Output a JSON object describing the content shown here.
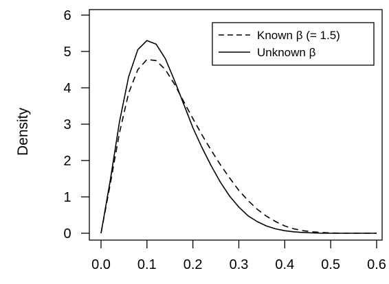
{
  "chart_data": {
    "type": "line",
    "title": "",
    "xlabel": "",
    "ylabel": "Density",
    "xlim": [
      0.0,
      0.6
    ],
    "ylim": [
      0,
      6
    ],
    "x_ticks": [
      "0.0",
      "0.1",
      "0.2",
      "0.3",
      "0.4",
      "0.5",
      "0.6"
    ],
    "y_ticks": [
      "0",
      "1",
      "2",
      "3",
      "4",
      "5",
      "6"
    ],
    "grid": false,
    "legend_position": "top-right",
    "series": [
      {
        "name": "Known β (= 1.5)",
        "style": "dashed",
        "color": "#000000",
        "x": [
          0.0,
          0.02,
          0.04,
          0.06,
          0.08,
          0.1,
          0.12,
          0.14,
          0.16,
          0.18,
          0.2,
          0.22,
          0.24,
          0.26,
          0.28,
          0.3,
          0.32,
          0.34,
          0.36,
          0.38,
          0.4,
          0.42,
          0.44,
          0.46,
          0.48,
          0.5,
          0.52,
          0.55,
          0.6
        ],
        "y": [
          0.0,
          1.35,
          2.75,
          3.85,
          4.5,
          4.78,
          4.75,
          4.5,
          4.1,
          3.62,
          3.15,
          2.7,
          2.28,
          1.88,
          1.52,
          1.18,
          0.9,
          0.66,
          0.47,
          0.32,
          0.2,
          0.12,
          0.07,
          0.04,
          0.02,
          0.01,
          0.0,
          0.0,
          0.0
        ]
      },
      {
        "name": "Unknown β",
        "style": "solid",
        "color": "#000000",
        "x": [
          0.0,
          0.02,
          0.04,
          0.06,
          0.08,
          0.1,
          0.12,
          0.14,
          0.16,
          0.18,
          0.2,
          0.22,
          0.24,
          0.26,
          0.28,
          0.3,
          0.32,
          0.34,
          0.36,
          0.38,
          0.4,
          0.42,
          0.44,
          0.46,
          0.48,
          0.5,
          0.52,
          0.55,
          0.6
        ],
        "y": [
          0.0,
          1.45,
          3.05,
          4.3,
          5.05,
          5.3,
          5.2,
          4.8,
          4.2,
          3.55,
          2.9,
          2.35,
          1.85,
          1.4,
          1.02,
          0.72,
          0.48,
          0.32,
          0.2,
          0.12,
          0.07,
          0.04,
          0.02,
          0.01,
          0.0,
          0.0,
          0.0,
          0.0,
          0.0
        ]
      }
    ]
  }
}
